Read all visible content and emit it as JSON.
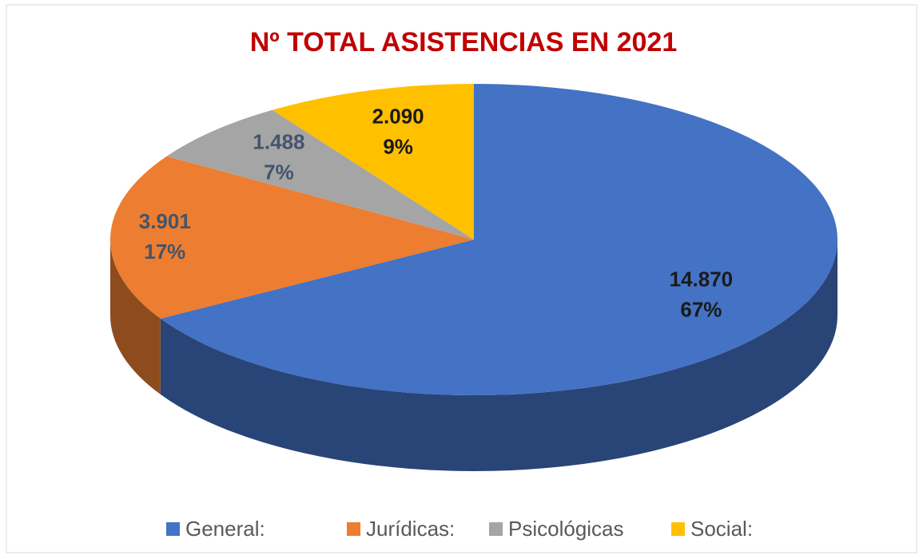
{
  "chart_data": {
    "type": "pie",
    "title": "Nº TOTAL ASISTENCIAS EN 2021",
    "categories": [
      "General:",
      "Jurídicas:",
      "Psicológicas",
      "Social:"
    ],
    "values": [
      14870,
      3901,
      1488,
      2090
    ],
    "value_labels": [
      "14.870",
      "3.901",
      "1.488",
      "2.090"
    ],
    "percent_values": [
      67,
      17,
      7,
      9
    ],
    "percent_labels": [
      "67%",
      "17%",
      "7%",
      "9%"
    ],
    "colors": [
      "#4472c4",
      "#ed7d31",
      "#a5a5a5",
      "#ffc000"
    ],
    "legend": "bottom"
  }
}
